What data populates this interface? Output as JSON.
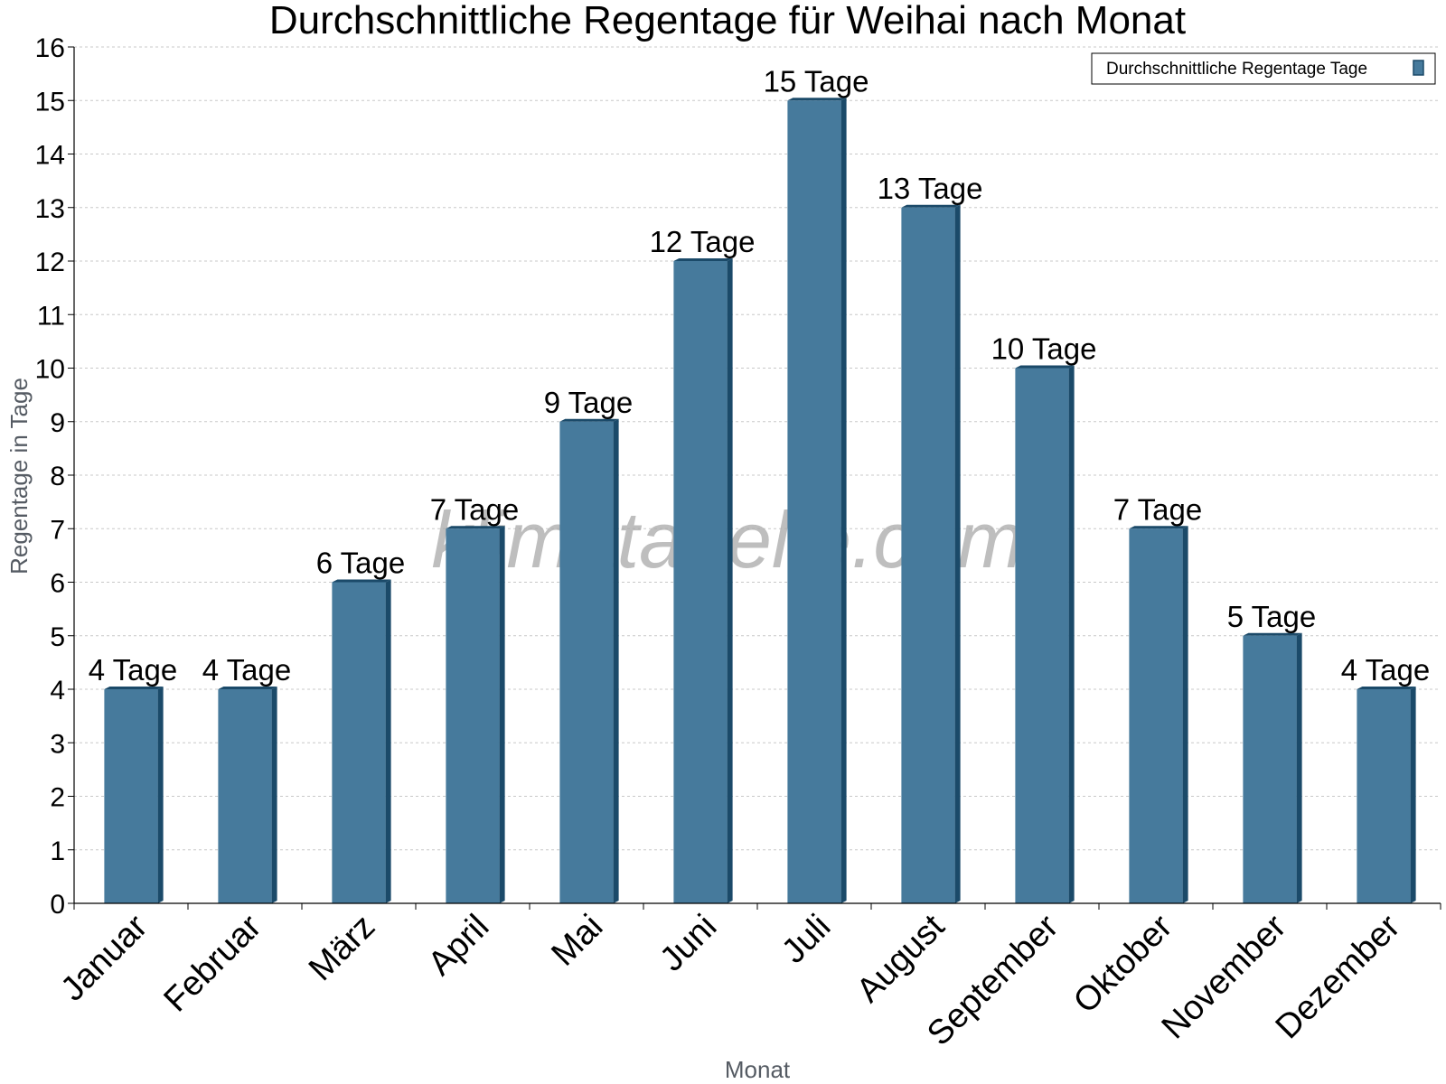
{
  "chart_data": {
    "type": "bar",
    "title": "Durchschnittliche Regentage für Weihai nach Monat",
    "xlabel": "Monat",
    "ylabel": "Regentage in Tage",
    "categories": [
      "Januar",
      "Februar",
      "März",
      "April",
      "Mai",
      "Juni",
      "Juli",
      "August",
      "September",
      "Oktober",
      "November",
      "Dezember"
    ],
    "series": [
      {
        "name": "Durchschnittliche Regentage Tage",
        "values": [
          4,
          4,
          6,
          7,
          9,
          12,
          15,
          13,
          10,
          7,
          5,
          4
        ],
        "color": "#467a9c"
      }
    ],
    "data_labels": [
      "4 Tage",
      "4 Tage",
      "6 Tage",
      "7 Tage",
      "9 Tage",
      "12 Tage",
      "15 Tage",
      "13 Tage",
      "10 Tage",
      "7 Tage",
      "5 Tage",
      "4 Tage"
    ],
    "ylim": [
      0,
      16
    ],
    "yticks": [
      0,
      1,
      2,
      3,
      4,
      5,
      6,
      7,
      8,
      9,
      10,
      11,
      12,
      13,
      14,
      15,
      16
    ],
    "grid": true,
    "legend_position": "top-right",
    "watermark": "klimatabelle.com",
    "colors": {
      "bar": "#467a9c",
      "bar_side": "#1b4a69",
      "grid": "#c8c8c8",
      "axis": "#000000"
    }
  }
}
